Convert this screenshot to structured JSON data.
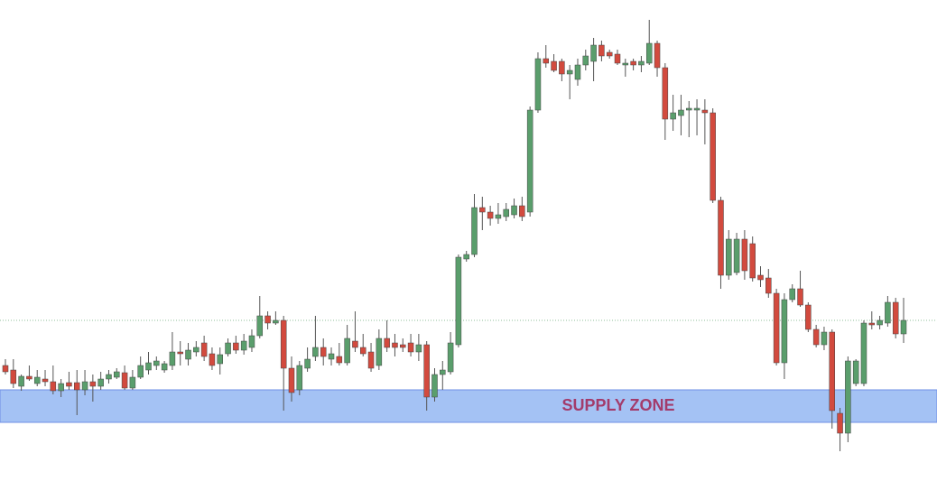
{
  "chart_data": {
    "type": "candlestick",
    "ylim": [
      67,
      600
    ],
    "up_color": "#5a9e6c",
    "down_color": "#d24a3e",
    "wick_color": "#555555",
    "zone": {
      "label": "SUPPLY ZONE",
      "low": 132,
      "high": 168,
      "color": "#a4c2f4",
      "border": "#6f8fe6",
      "label_color": "#a33b6b"
    },
    "reference_line": 245,
    "open": [
      195,
      190,
      172,
      183,
      175,
      180,
      177,
      167,
      176,
      176,
      168,
      177,
      172,
      180,
      182,
      187,
      170,
      182,
      190,
      195,
      190,
      195,
      210,
      202,
      210,
      220,
      208,
      197,
      208,
      220,
      212,
      215,
      228,
      250,
      242,
      245,
      192,
      168,
      192,
      205,
      215,
      202,
      205,
      198,
      222,
      215,
      210,
      195,
      225,
      220,
      218,
      220,
      210,
      218,
      160,
      185,
      188,
      218,
      313,
      318,
      370,
      365,
      358,
      360,
      362,
      372,
      365,
      478,
      535,
      532,
      532,
      518,
      512,
      528,
      532,
      550,
      542,
      540,
      528,
      532,
      528,
      530,
      552,
      525,
      468,
      472,
      478,
      478,
      478,
      475,
      378,
      295,
      298,
      335,
      330,
      295,
      292,
      275,
      198,
      268,
      280,
      262,
      235,
      218,
      232,
      142,
      120,
      175,
      175,
      242,
      240,
      242,
      265,
      230
    ],
    "high": [
      202,
      202,
      185,
      195,
      190,
      190,
      195,
      180,
      188,
      190,
      190,
      185,
      188,
      190,
      192,
      195,
      190,
      205,
      210,
      205,
      200,
      232,
      222,
      220,
      222,
      228,
      215,
      215,
      225,
      228,
      230,
      235,
      272,
      255,
      255,
      250,
      205,
      200,
      215,
      250,
      225,
      215,
      220,
      240,
      255,
      230,
      220,
      235,
      245,
      230,
      225,
      230,
      230,
      222,
      192,
      200,
      232,
      318,
      322,
      385,
      382,
      372,
      375,
      375,
      380,
      382,
      482,
      542,
      550,
      540,
      535,
      528,
      535,
      545,
      558,
      555,
      545,
      545,
      535,
      535,
      538,
      578,
      555,
      530,
      495,
      495,
      488,
      490,
      490,
      480,
      382,
      345,
      342,
      345,
      338,
      305,
      302,
      280,
      275,
      285,
      300,
      265,
      240,
      238,
      235,
      148,
      205,
      202,
      245,
      255,
      250,
      272,
      270,
      270
    ],
    "low": [
      185,
      170,
      167,
      178,
      172,
      172,
      163,
      160,
      168,
      140,
      162,
      155,
      168,
      175,
      180,
      168,
      168,
      180,
      185,
      190,
      187,
      190,
      195,
      195,
      205,
      200,
      190,
      185,
      205,
      208,
      207,
      210,
      225,
      235,
      240,
      145,
      155,
      162,
      188,
      200,
      195,
      195,
      195,
      195,
      210,
      205,
      188,
      190,
      210,
      205,
      210,
      205,
      200,
      145,
      155,
      168,
      185,
      215,
      310,
      315,
      345,
      350,
      352,
      355,
      358,
      355,
      360,
      475,
      525,
      520,
      510,
      490,
      505,
      522,
      510,
      532,
      535,
      528,
      515,
      522,
      520,
      528,
      515,
      445,
      455,
      450,
      448,
      450,
      440,
      375,
      280,
      290,
      295,
      290,
      288,
      282,
      270,
      195,
      180,
      265,
      260,
      232,
      215,
      212,
      125,
      100,
      110,
      172,
      172,
      235,
      235,
      238,
      225,
      220
    ],
    "close": [
      188,
      175,
      183,
      180,
      182,
      177,
      167,
      175,
      172,
      168,
      177,
      172,
      180,
      185,
      188,
      170,
      182,
      195,
      198,
      200,
      197,
      210,
      208,
      212,
      215,
      205,
      195,
      207,
      220,
      212,
      222,
      228,
      250,
      242,
      245,
      192,
      165,
      195,
      202,
      215,
      205,
      208,
      198,
      225,
      215,
      208,
      192,
      225,
      215,
      215,
      215,
      210,
      218,
      160,
      185,
      190,
      220,
      315,
      318,
      370,
      365,
      358,
      362,
      368,
      372,
      360,
      478,
      535,
      530,
      522,
      518,
      522,
      528,
      538,
      550,
      538,
      538,
      530,
      530,
      528,
      532,
      552,
      525,
      468,
      475,
      478,
      480,
      480,
      475,
      378,
      295,
      335,
      335,
      300,
      292,
      290,
      275,
      198,
      268,
      280,
      262,
      235,
      218,
      232,
      145,
      120,
      200,
      200,
      242,
      240,
      245,
      265,
      230,
      245
    ]
  }
}
